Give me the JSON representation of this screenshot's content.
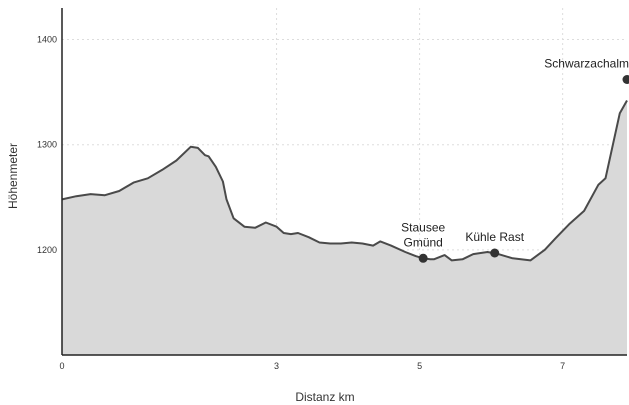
{
  "chart_data": {
    "type": "area",
    "title": "",
    "xlabel": "Distanz km",
    "ylabel": "Höhenmeter",
    "xlim": [
      0,
      7.9
    ],
    "ylim": [
      1100,
      1430
    ],
    "x_ticks": [
      0,
      3,
      5,
      7
    ],
    "y_ticks": [
      1200,
      1300,
      1400
    ],
    "grid": true,
    "colors": {
      "fill": "#d9d9d9",
      "line": "#4a4a4a",
      "grid": "#dddddd",
      "marker": "#333333"
    },
    "series": [
      {
        "x": [
          0,
          0.2,
          0.4,
          0.6,
          0.8,
          1.0,
          1.2,
          1.4,
          1.6,
          1.8,
          1.9,
          2.0,
          2.05,
          2.15,
          2.25,
          2.3,
          2.4,
          2.55,
          2.7,
          2.85,
          3.0,
          3.1,
          3.2,
          3.3,
          3.45,
          3.6,
          3.75,
          3.9,
          4.05,
          4.2,
          4.35,
          4.45,
          4.6,
          4.8,
          4.95,
          5.05,
          5.15,
          5.2,
          5.35,
          5.45,
          5.6,
          5.75,
          5.95,
          6.1,
          6.3,
          6.55,
          6.75,
          6.9,
          7.1,
          7.3,
          7.5,
          7.6,
          7.8,
          7.9
        ],
        "y": [
          1248,
          1251,
          1253,
          1252,
          1256,
          1264,
          1268,
          1276,
          1285,
          1298,
          1297,
          1290,
          1289,
          1279,
          1265,
          1248,
          1230,
          1222,
          1221,
          1226,
          1222,
          1216,
          1215,
          1216,
          1212,
          1207,
          1206,
          1206,
          1207,
          1206,
          1204,
          1208,
          1204,
          1198,
          1194,
          1192,
          1191,
          1191,
          1195,
          1190,
          1191,
          1196,
          1198,
          1196,
          1192,
          1190,
          1200,
          1211,
          1225,
          1237,
          1262,
          1268,
          1330,
          1342
        ]
      }
    ],
    "annotations": [
      {
        "label": "Stausee Gmünd",
        "lines": [
          "Stausee",
          "Gmünd"
        ],
        "x": 5.05,
        "y": 1192
      },
      {
        "label": "Kühle Rast",
        "lines": [
          "Kühle Rast"
        ],
        "x": 6.05,
        "y": 1197
      },
      {
        "label": "Schwarzachalm",
        "lines": [
          "Schwarzachalm"
        ],
        "x": 7.9,
        "y": 1362
      }
    ]
  }
}
